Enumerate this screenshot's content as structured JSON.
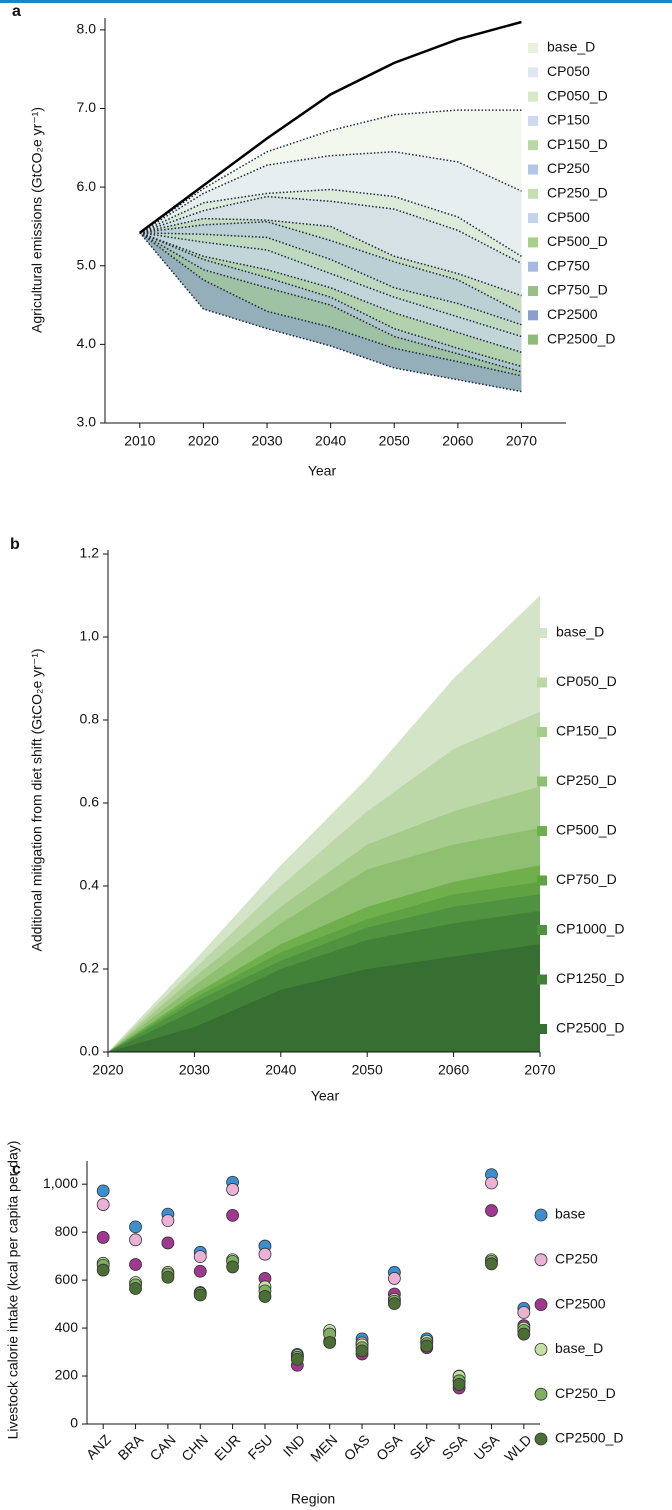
{
  "chart_data": [
    {
      "type": "line",
      "label": "a",
      "y_label": "Agricultural emissions (GtCO₂e yr⁻¹)",
      "x_label": "Year",
      "x": [
        2010,
        2020,
        2030,
        2040,
        2050,
        2060,
        2070
      ],
      "xlim": [
        2005,
        2077
      ],
      "xticks": [
        2010,
        2020,
        2030,
        2040,
        2050,
        2060,
        2070
      ],
      "ylim": [
        3.0,
        8.1
      ],
      "yticks": [
        {
          "value": 3,
          "label": "3.0"
        },
        {
          "value": 4,
          "label": "4.0"
        },
        {
          "value": 5,
          "label": "5.0"
        },
        {
          "value": 6,
          "label": "6.0"
        },
        {
          "value": 7,
          "label": "7.0"
        },
        {
          "value": 8,
          "label": "8.0"
        }
      ],
      "base_values": [
        5.42,
        6.02,
        6.62,
        7.18,
        7.58,
        7.88,
        8.1
      ],
      "series": [
        {
          "name": "base_D",
          "color": "#e8f2df",
          "values": [
            5.42,
            5.98,
            6.45,
            6.72,
            6.92,
            6.98,
            6.98
          ]
        },
        {
          "name": "CP050",
          "color": "#dfe6f2",
          "values": [
            5.42,
            5.92,
            6.28,
            6.4,
            6.45,
            6.32,
            5.95
          ]
        },
        {
          "name": "CP050_D",
          "color": "#d6eac9",
          "values": [
            5.42,
            5.8,
            5.92,
            5.97,
            5.88,
            5.62,
            5.12
          ]
        },
        {
          "name": "CP150",
          "color": "#cdd9ef",
          "values": [
            5.42,
            5.7,
            5.88,
            5.82,
            5.72,
            5.45,
            5.03
          ]
        },
        {
          "name": "CP150_D",
          "color": "#b8d9a2",
          "values": [
            5.42,
            5.6,
            5.58,
            5.5,
            5.12,
            4.9,
            4.62
          ]
        },
        {
          "name": "CP250",
          "color": "#b3c6e6",
          "values": [
            5.42,
            5.52,
            5.56,
            5.32,
            5.05,
            4.82,
            4.4
          ]
        },
        {
          "name": "CP250_D",
          "color": "#c3e0b0",
          "values": [
            5.42,
            5.4,
            5.36,
            5.08,
            4.72,
            4.52,
            4.25
          ]
        },
        {
          "name": "CP500",
          "color": "#c5d3ee",
          "values": [
            5.42,
            5.3,
            5.2,
            4.9,
            4.6,
            4.35,
            4.1
          ]
        },
        {
          "name": "CP500_D",
          "color": "#a6cf8a",
          "values": [
            5.42,
            5.12,
            4.95,
            4.72,
            4.4,
            4.15,
            3.9
          ]
        },
        {
          "name": "CP750",
          "color": "#a7b9e2",
          "values": [
            5.42,
            5.08,
            4.85,
            4.6,
            4.2,
            3.95,
            3.72
          ]
        },
        {
          "name": "CP750_D",
          "color": "#98bf85",
          "values": [
            5.42,
            4.95,
            4.72,
            4.5,
            4.1,
            3.88,
            3.65
          ]
        },
        {
          "name": "CP2500",
          "color": "#8aa0cc",
          "values": [
            5.42,
            4.82,
            4.42,
            4.22,
            3.95,
            3.78,
            3.6
          ]
        },
        {
          "name": "CP2500_D",
          "color": "#8fbb78",
          "values": [
            5.42,
            4.45,
            4.2,
            3.98,
            3.7,
            3.55,
            3.4
          ]
        }
      ]
    },
    {
      "type": "area",
      "label": "b",
      "y_label": "Additional mitigation from diet shift (GtCO₂e yr⁻¹)",
      "x_label": "Year",
      "x": [
        2020,
        2030,
        2040,
        2050,
        2060,
        2070
      ],
      "xlim": [
        2020,
        2070
      ],
      "xticks": [
        2020,
        2030,
        2040,
        2050,
        2060,
        2070
      ],
      "ylim": [
        0,
        1.2
      ],
      "yticks": [
        {
          "value": 0,
          "label": "0.0"
        },
        {
          "value": 0.2,
          "label": "0.2"
        },
        {
          "value": 0.4,
          "label": "0.4"
        },
        {
          "value": 0.6,
          "label": "0.6"
        },
        {
          "value": 0.8,
          "label": "0.8"
        },
        {
          "value": 1,
          "label": "1.0"
        },
        {
          "value": 1.2,
          "label": "1.2"
        }
      ],
      "series": [
        {
          "name": "base_D",
          "color": "#d3e4c7",
          "values": [
            0,
            0.22,
            0.45,
            0.66,
            0.9,
            1.1
          ]
        },
        {
          "name": "CP050_D",
          "color": "#bcd8a8",
          "values": [
            0,
            0.2,
            0.4,
            0.58,
            0.73,
            0.82
          ]
        },
        {
          "name": "CP150_D",
          "color": "#a6cc8c",
          "values": [
            0,
            0.18,
            0.35,
            0.5,
            0.58,
            0.64
          ]
        },
        {
          "name": "CP250_D",
          "color": "#8fc072",
          "values": [
            0,
            0.16,
            0.31,
            0.44,
            0.5,
            0.54
          ]
        },
        {
          "name": "CP500_D",
          "color": "#6fb04c",
          "values": [
            0,
            0.14,
            0.26,
            0.35,
            0.41,
            0.45
          ]
        },
        {
          "name": "CP750_D",
          "color": "#5ea243",
          "values": [
            0,
            0.13,
            0.24,
            0.32,
            0.38,
            0.41
          ]
        },
        {
          "name": "CP1000_D",
          "color": "#4f9240",
          "values": [
            0,
            0.12,
            0.22,
            0.3,
            0.35,
            0.38
          ]
        },
        {
          "name": "CP1250_D",
          "color": "#428238",
          "values": [
            0,
            0.1,
            0.2,
            0.27,
            0.31,
            0.34
          ]
        },
        {
          "name": "CP2500_D",
          "color": "#376f33",
          "values": [
            0,
            0.06,
            0.15,
            0.2,
            0.23,
            0.26
          ]
        }
      ]
    },
    {
      "type": "dot",
      "label": "c",
      "y_label": "Livestock calorie intake (kcal per capita per day)",
      "x_label": "Region",
      "categories": [
        "ANZ",
        "BRA",
        "CAN",
        "CHN",
        "EUR",
        "FSU",
        "IND",
        "MEN",
        "OAS",
        "OSA",
        "SEA",
        "SSA",
        "USA",
        "WLD"
      ],
      "ylim": [
        0,
        1080
      ],
      "yticks": [
        0,
        200,
        400,
        600,
        800,
        {
          "value": 1000,
          "label": "1,000"
        }
      ],
      "series": [
        {
          "name": "base",
          "color": "#3a8fd0",
          "values": [
            972,
            822,
            875,
            716,
            1008,
            742,
            290,
            385,
            355,
            632,
            355,
            200,
            1040,
            482
          ]
        },
        {
          "name": "CP250",
          "color": "#eab3d6",
          "values": [
            915,
            768,
            848,
            698,
            978,
            708,
            282,
            378,
            338,
            607,
            345,
            180,
            1005,
            465
          ]
        },
        {
          "name": "CP2500",
          "color": "#a0388f",
          "values": [
            778,
            665,
            755,
            637,
            870,
            607,
            245,
            345,
            292,
            542,
            318,
            150,
            890,
            410
          ]
        },
        {
          "name": "base_D",
          "color": "#c3e0a6",
          "values": [
            670,
            590,
            632,
            548,
            685,
            572,
            285,
            390,
            330,
            520,
            345,
            198,
            685,
            400
          ]
        },
        {
          "name": "CP250_D",
          "color": "#7fb060",
          "values": [
            662,
            580,
            625,
            545,
            678,
            555,
            278,
            375,
            318,
            512,
            335,
            180,
            678,
            390
          ]
        },
        {
          "name": "CP2500_D",
          "color": "#4a6e34",
          "values": [
            642,
            565,
            612,
            538,
            655,
            532,
            270,
            340,
            305,
            502,
            325,
            165,
            668,
            375
          ]
        }
      ]
    }
  ]
}
